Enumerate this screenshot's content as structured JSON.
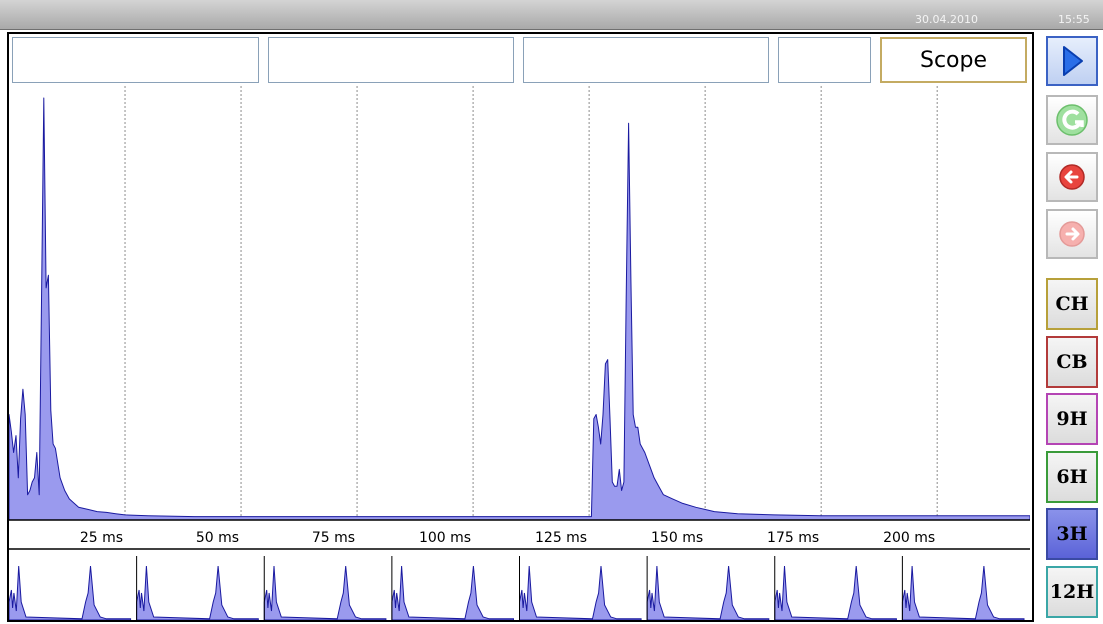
{
  "status_bar": {
    "date": "30.04.2010",
    "time": "15:55"
  },
  "mode_label": "Scope",
  "info_fields": [
    "",
    "",
    "",
    ""
  ],
  "controls": {
    "play_icon": "play-icon",
    "refresh_icon": "refresh-icon",
    "back_icon": "arrow-left-icon",
    "forward_icon": "arrow-right-icon"
  },
  "channel_buttons": [
    {
      "label": "CH",
      "color": "#b7a03a"
    },
    {
      "label": "CB",
      "color": "#b23a3a"
    },
    {
      "label": "9H",
      "color": "#b444b4"
    },
    {
      "label": "6H",
      "color": "#3a9b3a"
    },
    {
      "label": "3H",
      "color": "#3a4aa4",
      "active": true
    },
    {
      "label": "12H",
      "color": "#3aa6a6"
    }
  ],
  "colors": {
    "signal_fill": "#9a9aee",
    "signal_line": "#1a1aa0",
    "grid": "#8c8c8c"
  },
  "chart_data": {
    "type": "area",
    "x_unit": "ms",
    "xlim": [
      0,
      220
    ],
    "x_ticks": [
      25,
      50,
      75,
      100,
      125,
      150,
      175,
      200
    ],
    "x_tick_labels": [
      "25 ms",
      "50 ms",
      "75 ms",
      "100 ms",
      "125 ms",
      "150 ms",
      "175 ms",
      "200 ms"
    ],
    "ylim": [
      0,
      1
    ],
    "grid": "vertical dotted",
    "x": [
      0,
      0.5,
      1,
      1.5,
      2,
      2.5,
      3,
      3.5,
      4,
      4.5,
      5,
      5.5,
      6,
      6.5,
      7,
      7.5,
      8,
      8.5,
      9,
      9.5,
      10,
      11,
      12,
      13,
      14,
      15,
      17,
      19,
      21,
      23,
      25,
      30,
      40,
      60,
      90,
      120,
      125.5,
      126,
      126.5,
      127,
      127.5,
      128,
      128.5,
      129,
      129.5,
      130,
      130.5,
      131,
      131.5,
      132,
      132.5,
      133,
      133.5,
      134,
      134.5,
      135,
      135.5,
      136,
      137,
      138,
      139,
      140,
      141,
      143,
      145,
      148,
      152,
      157,
      165,
      175,
      190,
      205,
      220
    ],
    "y": [
      0.25,
      0.21,
      0.16,
      0.2,
      0.1,
      0.24,
      0.31,
      0.25,
      0.06,
      0.07,
      0.09,
      0.1,
      0.16,
      0.06,
      0.52,
      1.0,
      0.55,
      0.58,
      0.26,
      0.18,
      0.17,
      0.1,
      0.07,
      0.05,
      0.04,
      0.03,
      0.025,
      0.02,
      0.018,
      0.015,
      0.012,
      0.01,
      0.008,
      0.008,
      0.008,
      0.008,
      0.008,
      0.24,
      0.25,
      0.22,
      0.18,
      0.25,
      0.37,
      0.38,
      0.24,
      0.09,
      0.08,
      0.08,
      0.12,
      0.07,
      0.09,
      0.53,
      0.94,
      0.57,
      0.25,
      0.22,
      0.22,
      0.18,
      0.16,
      0.13,
      0.1,
      0.08,
      0.06,
      0.05,
      0.04,
      0.03,
      0.02,
      0.015,
      0.012,
      0.01,
      0.01,
      0.01,
      0.01
    ]
  },
  "thumbnails": {
    "count": 8,
    "pattern_x": [
      0,
      2,
      3,
      4,
      6,
      8,
      10,
      14,
      60,
      63,
      65,
      67,
      70,
      75,
      80,
      100
    ],
    "pattern_y": [
      0.3,
      0.5,
      0.2,
      0.45,
      0.15,
      0.9,
      0.3,
      0.05,
      0.02,
      0.3,
      0.45,
      0.9,
      0.25,
      0.05,
      0.02,
      0.02
    ]
  }
}
